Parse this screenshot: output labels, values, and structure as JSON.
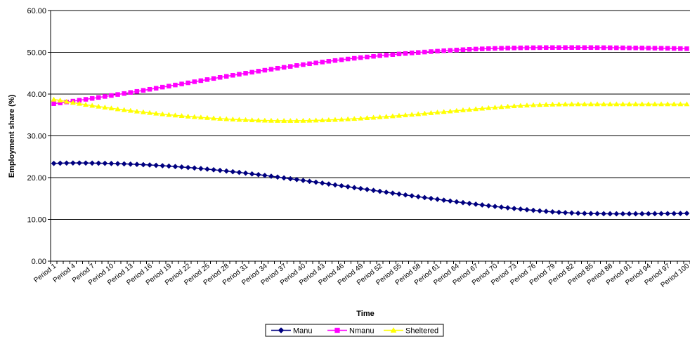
{
  "chart_data": {
    "type": "line",
    "title": "",
    "xlabel": "Time",
    "ylabel": "Employment share (%)",
    "ylim": [
      0,
      60
    ],
    "yticks": [
      0,
      10,
      20,
      30,
      40,
      50,
      60
    ],
    "ytick_labels": [
      "0.00",
      "10.00",
      "20.00",
      "30.00",
      "40.00",
      "50.00",
      "60.00"
    ],
    "grid": "horizontal",
    "legend_position": "bottom",
    "categories": [
      "Period 1",
      "Period 2",
      "Period 3",
      "Period 4",
      "Period 5",
      "Period 6",
      "Period 7",
      "Period 8",
      "Period 9",
      "Period 10",
      "Period 11",
      "Period 12",
      "Period 13",
      "Period 14",
      "Period 15",
      "Period 16",
      "Period 17",
      "Period 18",
      "Period 19",
      "Period 20",
      "Period 21",
      "Period 22",
      "Period 23",
      "Period 24",
      "Period 25",
      "Period 26",
      "Period 27",
      "Period 28",
      "Period 29",
      "Period 30",
      "Period 31",
      "Period 32",
      "Period 33",
      "Period 34",
      "Period 35",
      "Period 36",
      "Period 37",
      "Period 38",
      "Period 39",
      "Period 40",
      "Period 41",
      "Period 42",
      "Period 43",
      "Period 44",
      "Period 45",
      "Period 46",
      "Period 47",
      "Period 48",
      "Period 49",
      "Period 50",
      "Period 51",
      "Period 52",
      "Period 53",
      "Period 54",
      "Period 55",
      "Period 56",
      "Period 57",
      "Period 58",
      "Period 59",
      "Period 60",
      "Period 61",
      "Period 62",
      "Period 63",
      "Period 64",
      "Period 65",
      "Period 66",
      "Period 67",
      "Period 68",
      "Period 69",
      "Period 70",
      "Period 71",
      "Period 72",
      "Period 73",
      "Period 74",
      "Period 75",
      "Period 76",
      "Period 77",
      "Period 78",
      "Period 79",
      "Period 80",
      "Period 81",
      "Period 82",
      "Period 83",
      "Period 84",
      "Period 85",
      "Period 86",
      "Period 87",
      "Period 88",
      "Period 89",
      "Period 90",
      "Period 91",
      "Period 92",
      "Period 93",
      "Period 94",
      "Period 95",
      "Period 96",
      "Period 97",
      "Period 98",
      "Period 99",
      "Period 100"
    ],
    "tick_labels": [
      "Period 1",
      "Period 4",
      "Period 7",
      "Period 10",
      "Period 13",
      "Period 16",
      "Period 19",
      "Period 22",
      "Period 25",
      "Period 28",
      "Period 31",
      "Period 34",
      "Period 37",
      "Period 40",
      "Period 43",
      "Period 46",
      "Period 49",
      "Period 52",
      "Period 55",
      "Period 58",
      "Period 61",
      "Period 64",
      "Period 67",
      "Period 70",
      "Period 73",
      "Period 76",
      "Period 79",
      "Period 82",
      "Period 85",
      "Period 88",
      "Period 91",
      "Period 94",
      "Period 97",
      "Period 100"
    ],
    "series": [
      {
        "name": "Manu",
        "color": "#000080",
        "marker": "diamond",
        "values": [
          23.4,
          23.45,
          23.48,
          23.5,
          23.5,
          23.49,
          23.47,
          23.45,
          23.42,
          23.38,
          23.34,
          23.29,
          23.23,
          23.17,
          23.1,
          23.03,
          22.94,
          22.85,
          22.76,
          22.65,
          22.54,
          22.42,
          22.3,
          22.17,
          22.03,
          21.88,
          21.73,
          21.58,
          21.41,
          21.25,
          21.07,
          20.89,
          20.71,
          20.52,
          20.33,
          20.13,
          19.93,
          19.73,
          19.53,
          19.32,
          19.11,
          18.9,
          18.69,
          18.47,
          18.25,
          18.04,
          17.82,
          17.6,
          17.38,
          17.16,
          16.94,
          16.72,
          16.5,
          16.28,
          16.07,
          15.85,
          15.64,
          15.43,
          15.22,
          15.01,
          14.81,
          14.6,
          14.4,
          14.2,
          14.01,
          13.82,
          13.63,
          13.45,
          13.27,
          13.1,
          12.93,
          12.77,
          12.61,
          12.46,
          12.31,
          12.17,
          12.04,
          11.92,
          11.8,
          11.7,
          11.61,
          11.54,
          11.48,
          11.43,
          11.4,
          11.38,
          11.36,
          11.35,
          11.34,
          11.34,
          11.34,
          11.34,
          11.35,
          11.36,
          11.37,
          11.38,
          11.39,
          11.4,
          11.42,
          11.45
        ]
      },
      {
        "name": "Nmanu",
        "color": "#FF00FF",
        "marker": "square",
        "values": [
          37.7,
          37.89,
          38.1,
          38.31,
          38.52,
          38.74,
          38.96,
          39.19,
          39.42,
          39.66,
          39.9,
          40.14,
          40.39,
          40.64,
          40.89,
          41.14,
          41.4,
          41.66,
          41.91,
          42.17,
          42.43,
          42.69,
          42.95,
          43.21,
          43.47,
          43.73,
          43.99,
          44.24,
          44.49,
          44.74,
          44.99,
          45.23,
          45.48,
          45.71,
          45.95,
          46.18,
          46.4,
          46.62,
          46.84,
          47.05,
          47.26,
          47.46,
          47.66,
          47.85,
          48.04,
          48.22,
          48.4,
          48.57,
          48.73,
          48.89,
          49.04,
          49.19,
          49.33,
          49.46,
          49.6,
          49.72,
          49.84,
          49.96,
          50.07,
          50.17,
          50.27,
          50.37,
          50.46,
          50.55,
          50.63,
          50.7,
          50.77,
          50.83,
          50.88,
          50.93,
          50.97,
          51.01,
          51.04,
          51.07,
          51.09,
          51.1,
          51.12,
          51.13,
          51.13,
          51.14,
          51.14,
          51.14,
          51.14,
          51.13,
          51.13,
          51.12,
          51.11,
          51.1,
          51.09,
          51.08,
          51.06,
          51.05,
          51.03,
          51.01,
          50.99,
          50.97,
          50.95,
          50.92,
          50.89,
          50.86
        ]
      },
      {
        "name": "Sheltered",
        "color": "#FFFF00",
        "marker": "triangle",
        "values": [
          38.7,
          38.5,
          38.2,
          37.94,
          37.7,
          37.46,
          37.24,
          37.02,
          36.81,
          36.6,
          36.4,
          36.21,
          36.03,
          35.85,
          35.68,
          35.51,
          35.35,
          35.2,
          35.05,
          34.91,
          34.78,
          34.65,
          34.53,
          34.42,
          34.31,
          34.21,
          34.12,
          34.03,
          33.95,
          33.88,
          33.82,
          33.76,
          33.72,
          33.68,
          33.65,
          33.63,
          33.62,
          33.62,
          33.63,
          33.64,
          33.67,
          33.71,
          33.75,
          33.8,
          33.86,
          33.93,
          34.01,
          34.09,
          34.18,
          34.28,
          34.38,
          34.49,
          34.6,
          34.72,
          34.84,
          34.96,
          35.09,
          35.22,
          35.35,
          35.48,
          35.62,
          35.75,
          35.89,
          36.02,
          36.16,
          36.29,
          36.42,
          36.55,
          36.68,
          36.8,
          36.92,
          37.03,
          37.13,
          37.22,
          37.3,
          37.37,
          37.43,
          37.48,
          37.52,
          37.55,
          37.57,
          37.58,
          37.59,
          37.59,
          37.59,
          37.59,
          37.59,
          37.59,
          37.59,
          37.59,
          37.59,
          37.59,
          37.59,
          37.59,
          37.59,
          37.59,
          37.59,
          37.59,
          37.59,
          37.59
        ]
      }
    ]
  }
}
